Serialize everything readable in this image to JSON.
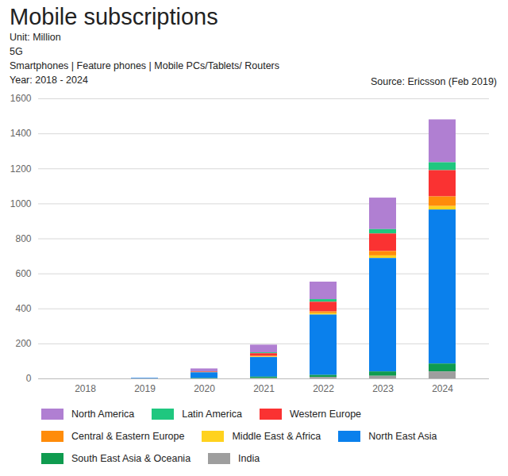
{
  "chart_data": {
    "type": "bar",
    "stacked": true,
    "title": "Mobile subscriptions",
    "subtitle": [
      "Unit: Million",
      "5G",
      "Smartphones | Feature phones | Mobile PCs/Tablets/ Routers",
      "Year: 2018 - 2024"
    ],
    "source": "Source: Ericsson (Feb 2019)",
    "categories": [
      "2018",
      "2019",
      "2020",
      "2021",
      "2022",
      "2023",
      "2024"
    ],
    "series": [
      {
        "name": "North America",
        "color": "#b07fd2",
        "values": [
          0,
          1,
          16,
          44,
          100,
          180,
          245
        ]
      },
      {
        "name": "Latin America",
        "color": "#1fc77f",
        "values": [
          0,
          0,
          1,
          5,
          15,
          25,
          45
        ]
      },
      {
        "name": "Western Europe",
        "color": "#fa3232",
        "values": [
          0,
          0,
          3,
          15,
          55,
          100,
          150
        ]
      },
      {
        "name": "Central & Eastern Europe",
        "color": "#ff8c0a",
        "values": [
          0,
          0,
          1,
          4,
          10,
          25,
          55
        ]
      },
      {
        "name": "Middle East & Africa",
        "color": "#ffd21e",
        "values": [
          0,
          0,
          1,
          3,
          8,
          15,
          20
        ]
      },
      {
        "name": "North East Asia",
        "color": "#0a80ec",
        "values": [
          0,
          3,
          33,
          112,
          345,
          648,
          880
        ]
      },
      {
        "name": "South East Asia & Oceania",
        "color": "#0f9b4f",
        "values": [
          0,
          0,
          2,
          8,
          12,
          25,
          45
        ]
      },
      {
        "name": "India",
        "color": "#9e9e9e",
        "values": [
          0,
          0,
          0,
          2,
          8,
          15,
          40
        ]
      }
    ],
    "ylim": [
      0,
      1600
    ],
    "yticks": [
      0,
      200,
      400,
      600,
      800,
      1000,
      1200,
      1400,
      1600
    ],
    "grid": true,
    "legend": "bottom"
  }
}
